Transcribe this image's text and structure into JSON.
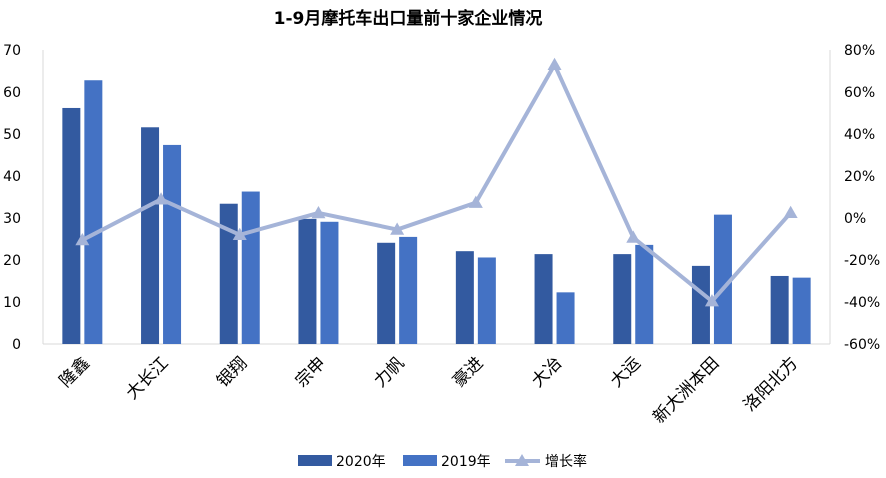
{
  "chart_data": {
    "type": "bar",
    "title": "1-9月摩托车出口量前十家企业情况",
    "categories": [
      "隆鑫",
      "大长江",
      "银翔",
      "宗申",
      "力帆",
      "豪进",
      "大冶",
      "大运",
      "新大洲本田",
      "洛阳北方"
    ],
    "series": [
      {
        "name": "2020年",
        "type": "bar",
        "axis": "left",
        "color": "#335aa0",
        "values": [
          56.2,
          51.6,
          33.4,
          29.8,
          24.1,
          22.1,
          21.4,
          21.4,
          18.6,
          16.2
        ]
      },
      {
        "name": "2019年",
        "type": "bar",
        "axis": "left",
        "color": "#4472c4",
        "values": [
          62.8,
          47.4,
          36.3,
          29.1,
          25.5,
          20.6,
          12.3,
          23.6,
          30.8,
          15.8
        ]
      },
      {
        "name": "增长率",
        "type": "line",
        "axis": "right",
        "color": "#a5b4d8",
        "marker": "triangle",
        "values": [
          -10.5,
          8.9,
          -8.0,
          2.4,
          -5.5,
          7.3,
          73.0,
          -9.3,
          -39.6,
          2.5
        ]
      }
    ],
    "y_left": {
      "min": 0,
      "max": 70,
      "step": 10,
      "ticks": [
        "0",
        "10",
        "20",
        "30",
        "40",
        "50",
        "60",
        "70"
      ]
    },
    "y_right": {
      "min": -60,
      "max": 80,
      "step": 20,
      "ticks": [
        "-60%",
        "-40%",
        "-20%",
        "0%",
        "20%",
        "40%",
        "60%",
        "80%"
      ]
    },
    "grid": false,
    "legend": "bottom"
  }
}
